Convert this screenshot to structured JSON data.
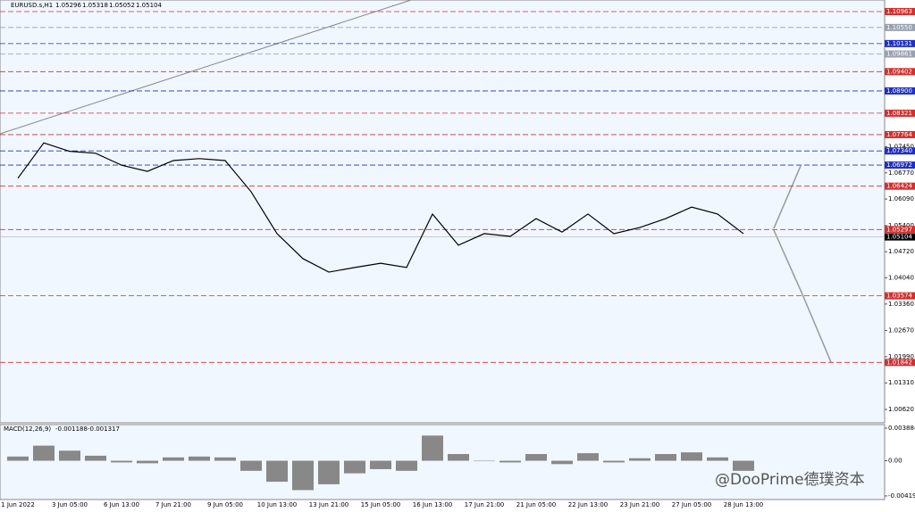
{
  "chart_data": [
    {
      "type": "line",
      "title": "EURUSD.s,H1",
      "quote": [
        1.05296,
        1.05318,
        1.05052,
        1.05104
      ],
      "categories": [
        "1 Jun 2022",
        null,
        "3 Jun 05:00",
        null,
        "6 Jun 13:00",
        null,
        "7 Jun 21:00",
        null,
        "9 Jun 05:00",
        null,
        "10 Jun 13:00",
        null,
        "13 Jun 21:00",
        null,
        "15 Jun 05:00",
        null,
        "16 Jun 13:00",
        null,
        "17 Jun 21:00",
        null,
        "21 Jun 05:00",
        null,
        "22 Jun 13:00",
        null,
        "23 Jun 21:00",
        null,
        "27 Jun 05:00",
        null,
        "28 Jun 13:00"
      ],
      "series": [
        {
          "name": "close",
          "color": "#000000",
          "values": [
            1.0663,
            1.0755,
            1.0733,
            1.0728,
            1.0697,
            1.0681,
            1.0709,
            1.0714,
            1.0709,
            1.0628,
            1.0519,
            1.0454,
            1.0419,
            1.0431,
            1.0442,
            1.0431,
            1.057,
            1.0489,
            1.0519,
            1.0512,
            1.0558,
            1.0523,
            1.057,
            1.0519,
            1.0535,
            1.0558,
            1.0588,
            1.057,
            1.0519
          ]
        }
      ],
      "ylim": [
        1.00272,
        1.11264
      ],
      "yticks": [
        {
          "value": 1.0062,
          "label": "1.00620"
        },
        {
          "value": 1.0131,
          "label": "1.01310"
        },
        {
          "value": 1.0199,
          "label": "1.01990"
        },
        {
          "value": 1.0267,
          "label": "1.02670"
        },
        {
          "value": 1.0336,
          "label": "1.03360"
        },
        {
          "value": 1.0404,
          "label": "1.04040"
        },
        {
          "value": 1.0472,
          "label": "1.04720"
        },
        {
          "value": 1.054,
          "label": "1.05400"
        },
        {
          "value": 1.0609,
          "label": "1.06090"
        },
        {
          "value": 1.0677,
          "label": "1.06770"
        },
        {
          "value": 1.0745,
          "label": "1.07450"
        }
      ],
      "levels": [
        {
          "value": 1.10963,
          "label": "1.10963",
          "color": "#d03030"
        },
        {
          "value": 1.1055,
          "label": "1.10550",
          "color": "#9aa0b0"
        },
        {
          "value": 1.10131,
          "label": "1.10131",
          "color": "#2030c0"
        },
        {
          "value": 1.09861,
          "label": "1.09861",
          "color": "#9aa0b0"
        },
        {
          "value": 1.09402,
          "label": "1.09402",
          "color": "#d03030"
        },
        {
          "value": 1.089,
          "label": "1.08900",
          "color": "#2030c0"
        },
        {
          "value": 1.08321,
          "label": "1.08321",
          "color": "#d03030"
        },
        {
          "value": 1.07764,
          "label": "1.07764",
          "color": "#d03030"
        },
        {
          "value": 1.0734,
          "label": "1.07340",
          "color": "#2030c0"
        },
        {
          "value": 1.06972,
          "label": "1.06972",
          "color": "#2030c0"
        },
        {
          "value": 1.06424,
          "label": "1.06424",
          "color": "#d03030"
        },
        {
          "value": 1.05297,
          "label": "1.05297",
          "color": "#d03030"
        },
        {
          "value": 1.05104,
          "label": "1.05104",
          "color": "#000000"
        },
        {
          "value": 1.03574,
          "label": "1.03574",
          "color": "#d03030"
        },
        {
          "value": 1.01842,
          "label": "1.01842",
          "color": "#d03030"
        }
      ]
    },
    {
      "type": "bar",
      "title": "MACD(12,26,9)",
      "indicator_values": [
        -0.001188,
        -0.001317
      ],
      "color": "#888888",
      "values": [
        0.0005,
        0.0018,
        0.0012,
        0.0006,
        -0.0002,
        -0.0003,
        0.0004,
        0.0005,
        0.0004,
        -0.0012,
        -0.0025,
        -0.0035,
        -0.0028,
        -0.0015,
        -0.001,
        -0.0012,
        0.003,
        0.0008,
        0,
        -0.0002,
        0.0008,
        -0.0004,
        0.0009,
        -0.0002,
        0.0003,
        0.0008,
        0.001,
        0.0004,
        -0.0012
      ],
      "ylim": [
        -0.00462,
        0.00431
      ],
      "yticks": [
        0.003884,
        {
          "value": 0,
          "label": "0.00"
        },
        -0.004191
      ]
    }
  ],
  "watermark": "@DooPrime德璞资本"
}
